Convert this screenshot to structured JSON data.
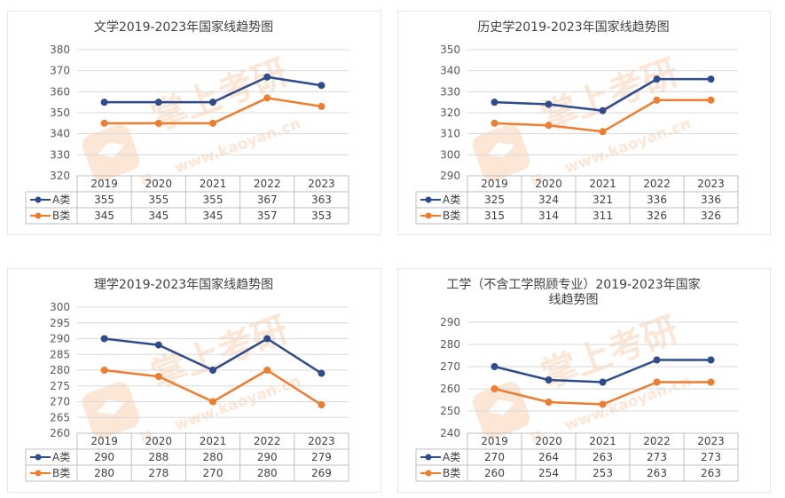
{
  "chart_data": [
    {
      "type": "line",
      "title": "文学2019-2023年国家线趋势图",
      "categories": [
        "2019",
        "2020",
        "2021",
        "2022",
        "2023"
      ],
      "ylim": [
        320,
        380
      ],
      "ystep": 10,
      "series": [
        {
          "name": "A类",
          "color": "#2f4b8a",
          "values": [
            355,
            355,
            355,
            367,
            363
          ]
        },
        {
          "name": "B类",
          "color": "#ed7d31",
          "values": [
            345,
            345,
            345,
            357,
            353
          ]
        }
      ]
    },
    {
      "type": "line",
      "title": "历史学2019-2023年国家线趋势图",
      "categories": [
        "2019",
        "2020",
        "2021",
        "2022",
        "2023"
      ],
      "ylim": [
        290,
        350
      ],
      "ystep": 10,
      "series": [
        {
          "name": "A类",
          "color": "#2f4b8a",
          "values": [
            325,
            324,
            321,
            336,
            336
          ]
        },
        {
          "name": "B类",
          "color": "#ed7d31",
          "values": [
            315,
            314,
            311,
            326,
            326
          ]
        }
      ]
    },
    {
      "type": "line",
      "title": "理学2019-2023年国家线趋势图",
      "categories": [
        "2019",
        "2020",
        "2021",
        "2022",
        "2023"
      ],
      "ylim": [
        260,
        300
      ],
      "ystep": 5,
      "series": [
        {
          "name": "A类",
          "color": "#2f4b8a",
          "values": [
            290,
            288,
            280,
            290,
            279
          ]
        },
        {
          "name": "B类",
          "color": "#ed7d31",
          "values": [
            280,
            278,
            270,
            280,
            269
          ]
        }
      ]
    },
    {
      "type": "line",
      "title": "工学（不含工学照顾专业）2019-2023年国家线趋势图",
      "title_lines": [
        "工学（不含工学照顾专业）2019-2023年国家",
        "线趋势图"
      ],
      "categories": [
        "2019",
        "2020",
        "2021",
        "2022",
        "2023"
      ],
      "ylim": [
        240,
        290
      ],
      "ystep": 10,
      "series": [
        {
          "name": "A类",
          "color": "#2f4b8a",
          "values": [
            270,
            264,
            263,
            273,
            273
          ]
        },
        {
          "name": "B类",
          "color": "#ed7d31",
          "values": [
            260,
            254,
            253,
            263,
            263
          ]
        }
      ]
    }
  ],
  "watermark": {
    "text": "掌上考研",
    "url": "www.kaoyan.cn",
    "badge": "研",
    "color": "#f6a76c"
  }
}
